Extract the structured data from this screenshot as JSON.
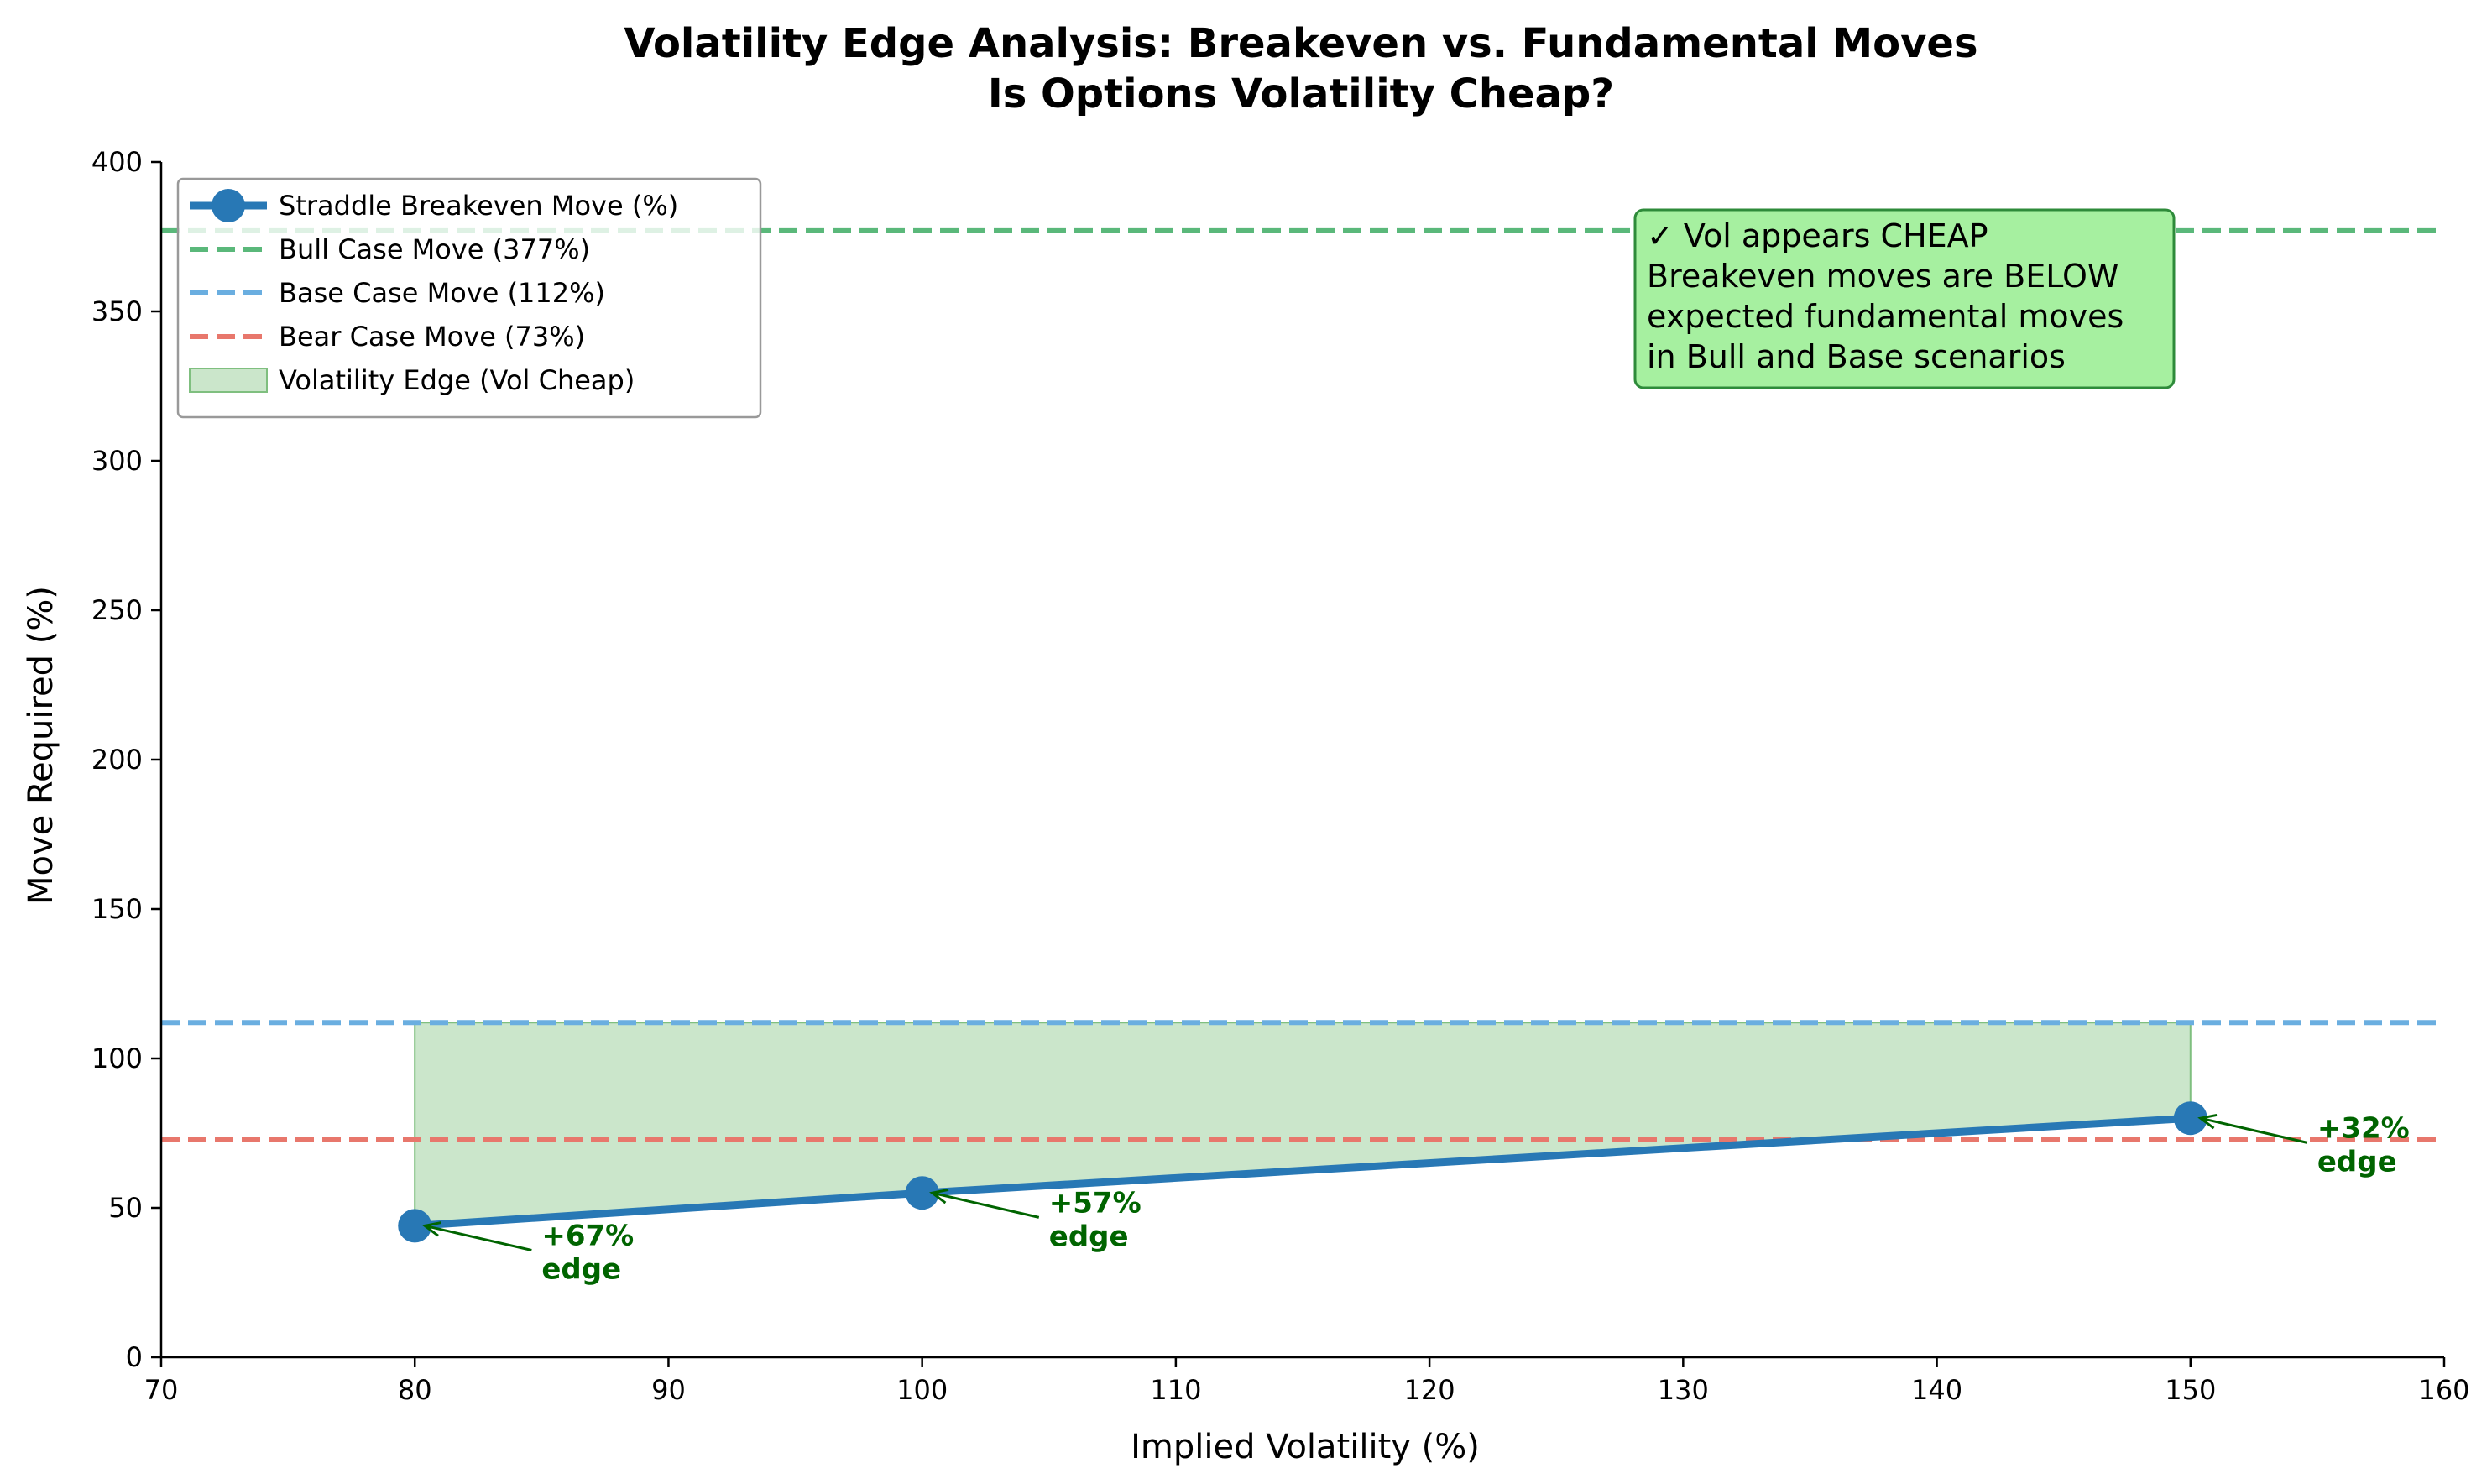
{
  "chart_data": {
    "type": "line",
    "title_line1": "Volatility Edge Analysis: Breakeven vs. Fundamental Moves",
    "title_line2": "Is Options Volatility Cheap?",
    "xlabel": "Implied Volatility (%)",
    "ylabel": "Move Required (%)",
    "xlim": [
      70,
      160
    ],
    "ylim": [
      0,
      400
    ],
    "xticks": [
      70,
      80,
      90,
      100,
      110,
      120,
      130,
      140,
      150,
      160
    ],
    "yticks": [
      0,
      50,
      100,
      150,
      200,
      250,
      300,
      350,
      400
    ],
    "grid": false,
    "legend_position": "upper-left",
    "series": [
      {
        "name": "Straddle Breakeven Move (%)",
        "color": "#2878b5",
        "x": [
          80,
          100,
          150
        ],
        "y": [
          44,
          55,
          80
        ]
      }
    ],
    "hlines": [
      {
        "name": "Bull Case Move (377%)",
        "value": 377,
        "color": "#5ab87a"
      },
      {
        "name": "Base Case Move (112%)",
        "value": 112,
        "color": "#6aaee0"
      },
      {
        "name": "Bear Case Move (73%)",
        "value": 73,
        "color": "#e8776c"
      }
    ],
    "fill": {
      "name": "Volatility Edge (Vol Cheap)",
      "color": "#a8d5a8",
      "upper": 112
    },
    "annotations": [
      {
        "x": 80,
        "y": 44,
        "text_x": 85,
        "text_y": 33,
        "line1": "+67%",
        "line2": "edge"
      },
      {
        "x": 100,
        "y": 55,
        "text_x": 105,
        "text_y": 44,
        "line1": "+57%",
        "line2": "edge"
      },
      {
        "x": 150,
        "y": 80,
        "text_x": 155,
        "text_y": 69,
        "line1": "+32%",
        "line2": "edge"
      }
    ],
    "annotation_color": "#006400",
    "info_box": {
      "lines": [
        "✓ Vol appears CHEAP",
        "Breakeven moves are BELOW",
        "expected fundamental moves",
        "in Bull and Base scenarios"
      ],
      "background": "#a6f0a0",
      "border": "#2e8b3a"
    }
  }
}
